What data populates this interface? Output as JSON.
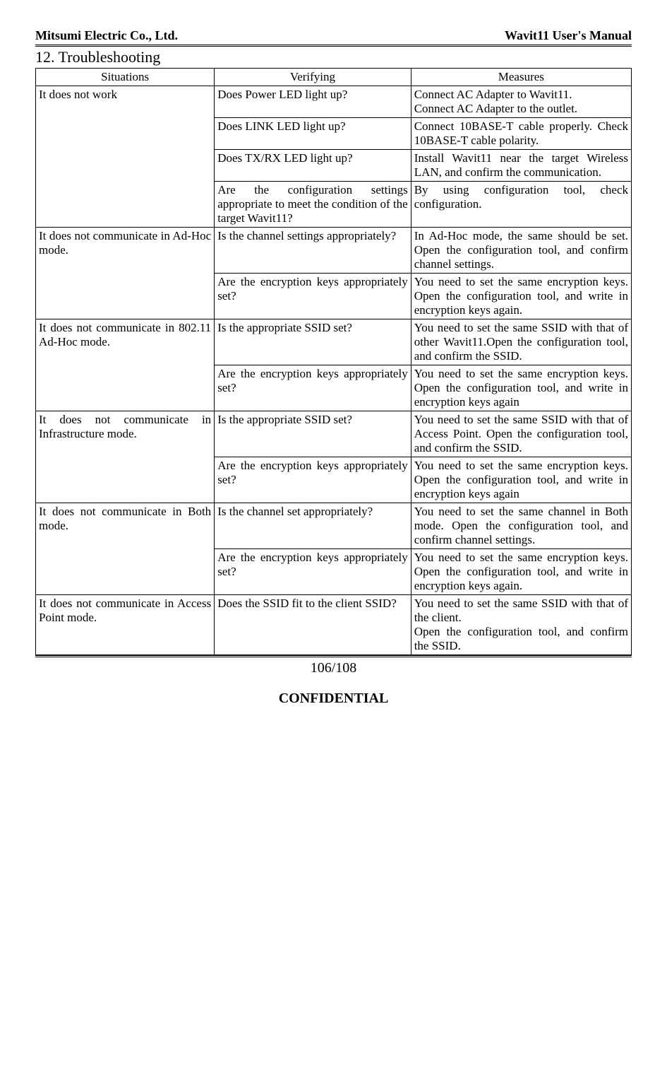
{
  "header": {
    "company": "Mitsumi Electric Co., Ltd.",
    "manual": "Wavit11 User's Manual"
  },
  "section_title": "12. Troubleshooting",
  "columns": [
    "Situations",
    "Verifying",
    "Measures"
  ],
  "groups": [
    {
      "situation": "It does not work",
      "rows": [
        {
          "verify": "Does Power LED light up?",
          "measure": "Connect AC Adapter to Wavit11.\nConnect AC Adapter to the outlet."
        },
        {
          "verify": "Does LINK LED light up?",
          "measure": "Connect 10BASE-T cable properly. Check 10BASE-T cable polarity."
        },
        {
          "verify": "Does TX/RX LED light up?",
          "measure": "Install Wavit11 near the target Wireless LAN, and confirm the communication."
        },
        {
          "verify": "Are the configuration settings appropriate to meet the condition of the target Wavit11?",
          "measure": "By using configuration tool, check configuration."
        }
      ]
    },
    {
      "situation": "It does not communicate in Ad-Hoc mode.",
      "rows": [
        {
          "verify": "Is the channel settings appropriately?",
          "measure": "In Ad-Hoc mode, the same should be set. Open the configuration tool, and confirm channel settings."
        },
        {
          "verify": "Are the encryption keys appropriately set?",
          "measure": "You need to set the same encryption keys. Open the configuration tool, and write in encryption keys again."
        }
      ]
    },
    {
      "situation": "It does not communicate in 802.11 Ad-Hoc mode.",
      "rows": [
        {
          "verify": "Is the appropriate SSID set?",
          "measure": "You need to set the same SSID with that of other Wavit11.Open the configuration tool, and confirm the SSID."
        },
        {
          "verify": "Are the encryption keys appropriately set?",
          "measure": "You need to set the same encryption keys. Open the configuration tool, and write in encryption keys again"
        }
      ]
    },
    {
      "situation": "It does not communicate in Infrastructure mode.",
      "rows": [
        {
          "verify": "Is the appropriate SSID set?",
          "measure": "You need to set the same SSID with that of Access Point. Open the configuration tool, and confirm the SSID."
        },
        {
          "verify": "Are the encryption keys appropriately set?",
          "measure": "You need to set the same encryption keys. Open the configuration tool, and write in encryption keys again"
        }
      ]
    },
    {
      "situation": "It does not communicate in Both mode.",
      "rows": [
        {
          "verify": "Is the channel set appropriately?",
          "measure": "You need to set the same channel in Both mode. Open the configuration tool, and confirm channel settings."
        },
        {
          "verify": "Are the encryption keys appropriately set?",
          "measure": "You need to set the same encryption keys. Open the configuration tool, and write in encryption keys again."
        }
      ]
    },
    {
      "situation": "It does not communicate in Access Point mode.",
      "rows": [
        {
          "verify": "Does the SSID fit to the  client SSID?",
          "measure": "You need to set the same SSID with that of the client.\nOpen the configuration tool, and confirm the SSID."
        }
      ]
    }
  ],
  "footer": {
    "page": "106/108",
    "confidential": "CONFIDENTIAL"
  },
  "style": {
    "font_family": "Times New Roman",
    "body_font_size_pt": 12,
    "header_font_size_pt": 14,
    "section_font_size_pt": 16,
    "text_color": "#000000",
    "background_color": "#ffffff",
    "border_color": "#000000",
    "col_widths_pct": [
      30,
      33,
      37
    ]
  }
}
